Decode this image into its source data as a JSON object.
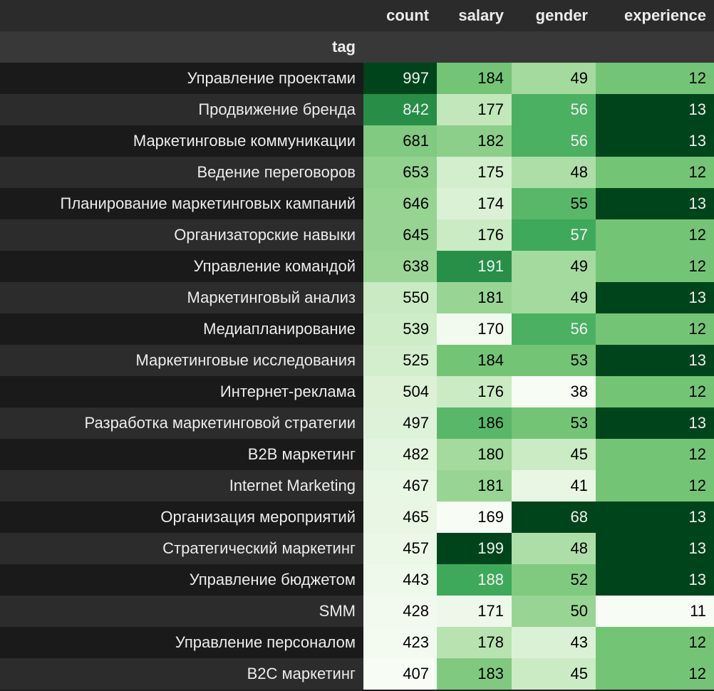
{
  "table": {
    "columns": [
      "count",
      "salary",
      "gender",
      "experience"
    ],
    "index_name": "tag",
    "colormap": [
      "#f7fcf5",
      "#e5f5e0",
      "#c7e9c0",
      "#a1d99b",
      "#74c476",
      "#41ab5d",
      "#238b45",
      "#006d2c",
      "#00441b"
    ],
    "rows": [
      {
        "tag": "Управление проектами",
        "count": 997,
        "salary": 184,
        "gender": 49,
        "experience": 12
      },
      {
        "tag": "Продвижение бренда",
        "count": 842,
        "salary": 177,
        "gender": 56,
        "experience": 13
      },
      {
        "tag": "Маркетинговые коммуникации",
        "count": 681,
        "salary": 182,
        "gender": 56,
        "experience": 13
      },
      {
        "tag": "Ведение переговоров",
        "count": 653,
        "salary": 175,
        "gender": 48,
        "experience": 12
      },
      {
        "tag": "Планирование маркетинговых кампаний",
        "count": 646,
        "salary": 174,
        "gender": 55,
        "experience": 13
      },
      {
        "tag": "Организаторские навыки",
        "count": 645,
        "salary": 176,
        "gender": 57,
        "experience": 12
      },
      {
        "tag": "Управление командой",
        "count": 638,
        "salary": 191,
        "gender": 49,
        "experience": 12
      },
      {
        "tag": "Маркетинговый анализ",
        "count": 550,
        "salary": 181,
        "gender": 49,
        "experience": 13
      },
      {
        "tag": "Медиапланирование",
        "count": 539,
        "salary": 170,
        "gender": 56,
        "experience": 12
      },
      {
        "tag": "Маркетинговые исследования",
        "count": 525,
        "salary": 184,
        "gender": 53,
        "experience": 13
      },
      {
        "tag": "Интернет-реклама",
        "count": 504,
        "salary": 176,
        "gender": 38,
        "experience": 12
      },
      {
        "tag": "Разработка маркетинговой стратегии",
        "count": 497,
        "salary": 186,
        "gender": 53,
        "experience": 13
      },
      {
        "tag": "B2B маркетинг",
        "count": 482,
        "salary": 180,
        "gender": 45,
        "experience": 12
      },
      {
        "tag": "Internet Marketing",
        "count": 467,
        "salary": 181,
        "gender": 41,
        "experience": 12
      },
      {
        "tag": "Организация мероприятий",
        "count": 465,
        "salary": 169,
        "gender": 68,
        "experience": 13
      },
      {
        "tag": "Стратегический маркетинг",
        "count": 457,
        "salary": 199,
        "gender": 48,
        "experience": 13
      },
      {
        "tag": "Управление бюджетом",
        "count": 443,
        "salary": 188,
        "gender": 52,
        "experience": 13
      },
      {
        "tag": "SMM",
        "count": 428,
        "salary": 171,
        "gender": 50,
        "experience": 11
      },
      {
        "tag": "Управление персоналом",
        "count": 423,
        "salary": 178,
        "gender": 43,
        "experience": 12
      },
      {
        "tag": "B2C маркетинг",
        "count": 407,
        "salary": 183,
        "gender": 45,
        "experience": 12
      }
    ]
  }
}
